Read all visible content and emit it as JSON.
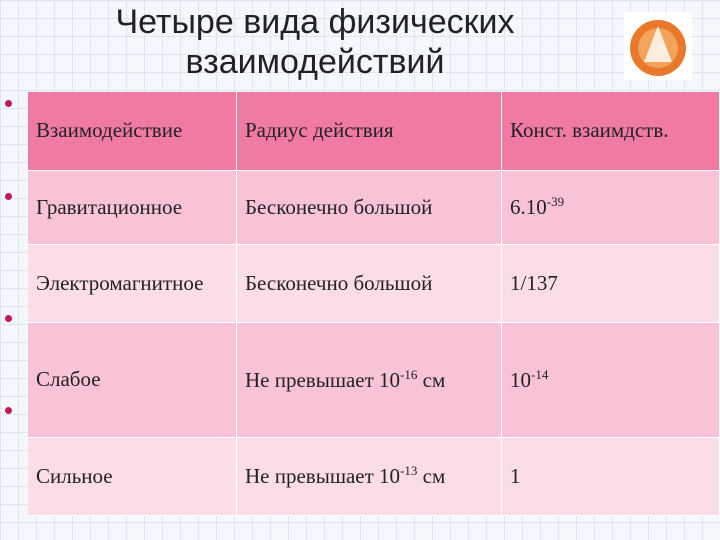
{
  "title": "Четыре вида физических взаимодействий",
  "table": {
    "header": [
      "Взаимодействие",
      "Радиус действия",
      "Конст. взаимдств."
    ],
    "rows": [
      [
        [
          "Гравитационное"
        ],
        [
          "Бесконечно большой"
        ],
        [
          "6.10",
          {
            "sup": "-39"
          }
        ]
      ],
      [
        [
          "Электромагнитное"
        ],
        [
          "Бесконечно большой"
        ],
        [
          "1/137"
        ]
      ],
      [
        [
          "Слабое"
        ],
        [
          "Не превышает 10",
          {
            "sup": "-16"
          },
          " см"
        ],
        [
          "10",
          {
            "sup": "-14"
          }
        ]
      ],
      [
        [
          "Сильное"
        ],
        [
          "Не превышает 10",
          {
            "sup": "-13"
          },
          " см"
        ],
        [
          "1"
        ]
      ]
    ]
  }
}
